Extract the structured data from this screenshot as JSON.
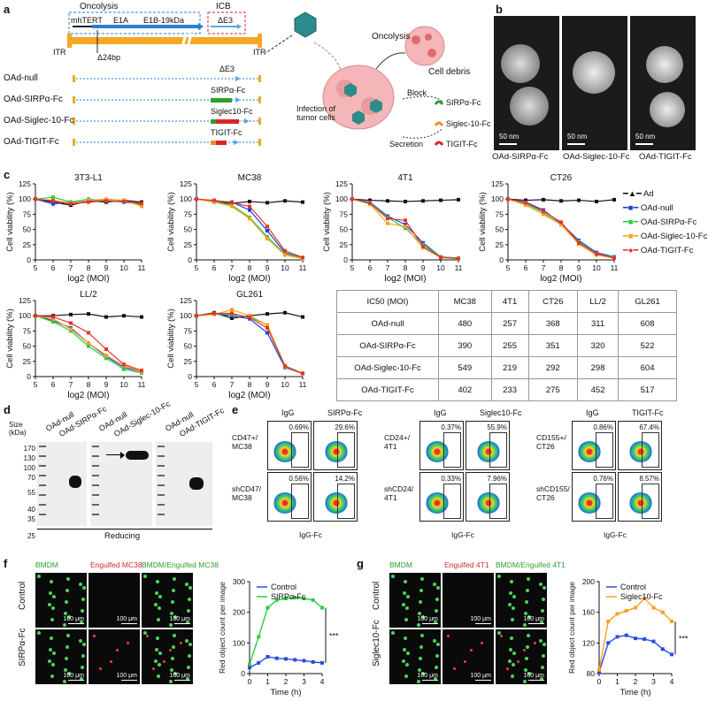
{
  "panel_labels": {
    "a": "a",
    "b": "b",
    "c": "c",
    "d": "d",
    "e": "e",
    "f": "f",
    "g": "g"
  },
  "panel_a": {
    "oncolysis": "Oncolysis",
    "icb": "ICB",
    "mhtert": "mhTERT",
    "e1a": "E1A",
    "e1b": "E1B-19kDa",
    "de3": "ΔE3",
    "itr_left": "ITR",
    "itr_right": "ITR",
    "d24bp": "Δ24bp",
    "constructs": [
      {
        "name": "OAd-null",
        "insert": "ΔE3",
        "color": "#ffffff"
      },
      {
        "name": "OAd-SIRPα-Fc",
        "insert": "SIRPα-Fc",
        "color": "#2ca02c"
      },
      {
        "name": "OAd-Siglec-10-Fc",
        "insert": "Siglec10-Fc",
        "color": "#f28e2b"
      },
      {
        "name": "OAd-TIGIT-Fc",
        "insert": "TIGIT-Fc",
        "color": "#d62728"
      }
    ],
    "schematic": {
      "oncolysis": "Oncolysis",
      "cell_debris": "Cell debris",
      "infection": "Infection of\ntumor cells",
      "block": "Block",
      "secretion": "Secretion",
      "sirpa": "SIRPα-Fc",
      "siglec": "Siglec-10-Fc",
      "tigit": "TIGIT-Fc"
    }
  },
  "panel_b": {
    "images": [
      {
        "caption": "OAd-SIRPα-Fc",
        "scale": "50 nm"
      },
      {
        "caption": "OAd-Siglec-10-Fc",
        "scale": "50 nm"
      },
      {
        "caption": "OAd-TIGIT-Fc",
        "scale": "50 nm"
      }
    ]
  },
  "panel_c": {
    "legend": [
      "Ad",
      "OAd-null",
      "OAd-SIRPα-Fc",
      "OAd-Siglec-10-Fc",
      "OAd-TIGIT-Fc"
    ],
    "colors": {
      "Ad": "#111111",
      "OAd-null": "#1f3fd6",
      "OAd-SIRPα-Fc": "#2ecc40",
      "OAd-Siglec-10-Fc": "#ff9f1c",
      "OAd-TIGIT-Fc": "#e8332a"
    },
    "ylabel": "Cell viability (%)",
    "xlabel": "log2 (MOI)"
  },
  "chart_data": [
    {
      "type": "line",
      "title": "3T3-L1",
      "x": [
        5,
        6,
        7,
        8,
        9,
        10,
        11
      ],
      "ylim": [
        0,
        125
      ],
      "xlabel": "log2 (MOI)",
      "ylabel": "Cell viability (%)",
      "series": [
        {
          "name": "Ad",
          "values": [
            100,
            95,
            90,
            97,
            95,
            98,
            95
          ]
        },
        {
          "name": "OAd-null",
          "values": [
            100,
            92,
            95,
            96,
            98,
            95,
            92
          ]
        },
        {
          "name": "OAd-SIRPα-Fc",
          "values": [
            100,
            103,
            95,
            100,
            97,
            97,
            90
          ]
        },
        {
          "name": "OAd-Siglec-10-Fc",
          "values": [
            100,
            98,
            93,
            98,
            100,
            98,
            88
          ]
        },
        {
          "name": "OAd-TIGIT-Fc",
          "values": [
            100,
            97,
            92,
            95,
            97,
            96,
            93
          ]
        }
      ]
    },
    {
      "type": "line",
      "title": "MC38",
      "x": [
        5,
        6,
        7,
        8,
        9,
        10,
        11
      ],
      "ylim": [
        0,
        125
      ],
      "xlabel": "log2 (MOI)",
      "ylabel": "Cell viability (%)",
      "series": [
        {
          "name": "Ad",
          "values": [
            100,
            95,
            93,
            96,
            94,
            97,
            95
          ]
        },
        {
          "name": "OAd-null",
          "values": [
            100,
            97,
            95,
            82,
            48,
            12,
            3
          ]
        },
        {
          "name": "OAd-SIRPα-Fc",
          "values": [
            100,
            96,
            90,
            70,
            38,
            10,
            3
          ]
        },
        {
          "name": "OAd-Siglec-10-Fc",
          "values": [
            100,
            95,
            88,
            68,
            35,
            8,
            2
          ]
        },
        {
          "name": "OAd-TIGIT-Fc",
          "values": [
            100,
            98,
            94,
            88,
            55,
            15,
            4
          ]
        }
      ]
    },
    {
      "type": "line",
      "title": "4T1",
      "x": [
        5,
        6,
        7,
        8,
        9,
        10,
        11
      ],
      "ylim": [
        0,
        125
      ],
      "xlabel": "log2 (MOI)",
      "ylabel": "Cell viability (%)",
      "series": [
        {
          "name": "Ad",
          "values": [
            100,
            98,
            97,
            96,
            97,
            98,
            99
          ]
        },
        {
          "name": "OAd-null",
          "values": [
            100,
            95,
            72,
            58,
            28,
            5,
            3
          ]
        },
        {
          "name": "OAd-SIRPα-Fc",
          "values": [
            100,
            94,
            70,
            52,
            25,
            5,
            3
          ]
        },
        {
          "name": "OAd-Siglec-10-Fc",
          "values": [
            100,
            92,
            60,
            55,
            20,
            4,
            2
          ]
        },
        {
          "name": "OAd-TIGIT-Fc",
          "values": [
            100,
            93,
            68,
            65,
            22,
            4,
            2
          ]
        }
      ]
    },
    {
      "type": "line",
      "title": "CT26",
      "x": [
        5,
        6,
        7,
        8,
        9,
        10,
        11
      ],
      "ylim": [
        0,
        125
      ],
      "xlabel": "log2 (MOI)",
      "ylabel": "Cell viability (%)",
      "series": [
        {
          "name": "Ad",
          "values": [
            100,
            98,
            99,
            97,
            98,
            96,
            99
          ]
        },
        {
          "name": "OAd-null",
          "values": [
            100,
            95,
            82,
            60,
            32,
            12,
            5
          ]
        },
        {
          "name": "OAd-SIRPα-Fc",
          "values": [
            100,
            92,
            78,
            58,
            30,
            10,
            4
          ]
        },
        {
          "name": "OAd-Siglec-10-Fc",
          "values": [
            100,
            90,
            75,
            58,
            26,
            8,
            3
          ]
        },
        {
          "name": "OAd-TIGIT-Fc",
          "values": [
            100,
            94,
            80,
            62,
            28,
            10,
            3
          ]
        }
      ]
    },
    {
      "type": "line",
      "title": "LL/2",
      "x": [
        5,
        6,
        7,
        8,
        9,
        10,
        11
      ],
      "ylim": [
        0,
        125
      ],
      "xlabel": "log2 (MOI)",
      "ylabel": "Cell viability (%)",
      "series": [
        {
          "name": "Ad",
          "values": [
            100,
            100,
            102,
            103,
            98,
            100,
            98
          ]
        },
        {
          "name": "OAd-null",
          "values": [
            100,
            92,
            80,
            55,
            33,
            15,
            8
          ]
        },
        {
          "name": "OAd-SIRPα-Fc",
          "values": [
            100,
            90,
            75,
            50,
            30,
            12,
            6
          ]
        },
        {
          "name": "OAd-Siglec-10-Fc",
          "values": [
            100,
            95,
            78,
            55,
            35,
            18,
            8
          ]
        },
        {
          "name": "OAd-TIGIT-Fc",
          "values": [
            100,
            98,
            88,
            72,
            45,
            20,
            10
          ]
        }
      ]
    },
    {
      "type": "line",
      "title": "GL261",
      "x": [
        5,
        6,
        7,
        8,
        9,
        10,
        11
      ],
      "ylim": [
        0,
        125
      ],
      "xlabel": "log2 (MOI)",
      "ylabel": "Cell viability (%)",
      "series": [
        {
          "name": "Ad",
          "values": [
            100,
            105,
            96,
            100,
            103,
            105,
            98
          ]
        },
        {
          "name": "OAd-null",
          "values": [
            100,
            103,
            100,
            95,
            72,
            15,
            5
          ]
        },
        {
          "name": "OAd-SIRPα-Fc",
          "values": [
            100,
            104,
            102,
            98,
            85,
            18,
            5
          ]
        },
        {
          "name": "OAd-Siglec-10-Fc",
          "values": [
            100,
            102,
            110,
            100,
            85,
            16,
            6
          ]
        },
        {
          "name": "OAd-TIGIT-Fc",
          "values": [
            100,
            104,
            104,
            97,
            80,
            17,
            5
          ]
        }
      ]
    },
    {
      "type": "table",
      "title": "IC50 (MOI)",
      "columns": [
        "IC50 (MOI)",
        "MC38",
        "4T1",
        "CT26",
        "LL/2",
        "GL261"
      ],
      "rows": [
        [
          "OAd-null",
          "480",
          "257",
          "368",
          "311",
          "608"
        ],
        [
          "OAd-SIRPα-Fc",
          "390",
          "255",
          "351",
          "320",
          "522"
        ],
        [
          "OAd-Siglec-10-Fc",
          "549",
          "219",
          "292",
          "298",
          "604"
        ],
        [
          "OAd-TIGIT-Fc",
          "402",
          "233",
          "275",
          "452",
          "517"
        ]
      ]
    },
    {
      "type": "line",
      "title": "f",
      "x": [
        0,
        0.5,
        1,
        1.5,
        2,
        2.5,
        3,
        3.5,
        4
      ],
      "xlabel": "Time (h)",
      "ylabel": "Red object count per image",
      "ylim": [
        0,
        300
      ],
      "series": [
        {
          "name": "Control",
          "values": [
            20,
            35,
            55,
            50,
            48,
            45,
            42,
            38,
            35
          ]
        },
        {
          "name": "SIRPα-Fc",
          "values": [
            30,
            120,
            215,
            240,
            245,
            248,
            245,
            240,
            215
          ]
        }
      ]
    },
    {
      "type": "line",
      "title": "g",
      "x": [
        0,
        0.5,
        1,
        1.5,
        2,
        2.5,
        3,
        3.5,
        4
      ],
      "xlabel": "Time (h)",
      "ylabel": "Red object count per image",
      "ylim": [
        80,
        200
      ],
      "series": [
        {
          "name": "Control",
          "values": [
            82,
            120,
            128,
            130,
            126,
            125,
            122,
            112,
            105
          ]
        },
        {
          "name": "Siglec10-Fc",
          "values": [
            85,
            148,
            158,
            162,
            166,
            178,
            166,
            160,
            148
          ]
        }
      ]
    }
  ],
  "panel_d": {
    "size_label": "Size\n(kDa)",
    "ladder": [
      "170",
      "130",
      "100",
      "70",
      "55",
      "40",
      "35",
      "25"
    ],
    "lanes": [
      "OAd-null",
      "OAd-SIRPα-Fc",
      "OAd-null",
      "OAd-Siglec-10-Fc",
      "OAd-null",
      "OAd-TIGIT-Fc"
    ],
    "footer": "Reducing"
  },
  "panel_e": {
    "groups": [
      {
        "cols": [
          "IgG",
          "SIRPα-Fc"
        ],
        "rows": [
          {
            "label": "CD47+/\nMC38",
            "vals": [
              "0.69%",
              "29.6%"
            ]
          },
          {
            "label": "shCD47/\nMC38",
            "vals": [
              "0.56%",
              "14.2%"
            ]
          }
        ]
      },
      {
        "cols": [
          "IgG",
          "Siglec10-Fc"
        ],
        "rows": [
          {
            "label": "CD24+/\n4T1",
            "vals": [
              "0.37%",
              "55.9%"
            ]
          },
          {
            "label": "shCD24/\n4T1",
            "vals": [
              "0.33%",
              "7.96%"
            ]
          }
        ]
      },
      {
        "cols": [
          "IgG",
          "TIGIT-Fc"
        ],
        "rows": [
          {
            "label": "CD155+/\nCT26",
            "vals": [
              "0.86%",
              "67.4%"
            ]
          },
          {
            "label": "shCD155/\nCT26",
            "vals": [
              "0.76%",
              "8.57%"
            ]
          }
        ]
      }
    ],
    "xaxis": "IgG-Fc"
  },
  "panel_f": {
    "cols": [
      "BMDM",
      "Engulfed MC38",
      "BMDM/Engulfed MC38"
    ],
    "rows": [
      "Control",
      "SIRPα-Fc"
    ],
    "scale": "100 μm",
    "sig": "***"
  },
  "panel_g": {
    "cols": [
      "BMDM",
      "Engulfed 4T1",
      "BMDM/Engulfed 4T1"
    ],
    "rows": [
      "Control",
      "Siglec10-Fc"
    ],
    "scale": "100 μm",
    "sig": "***"
  }
}
